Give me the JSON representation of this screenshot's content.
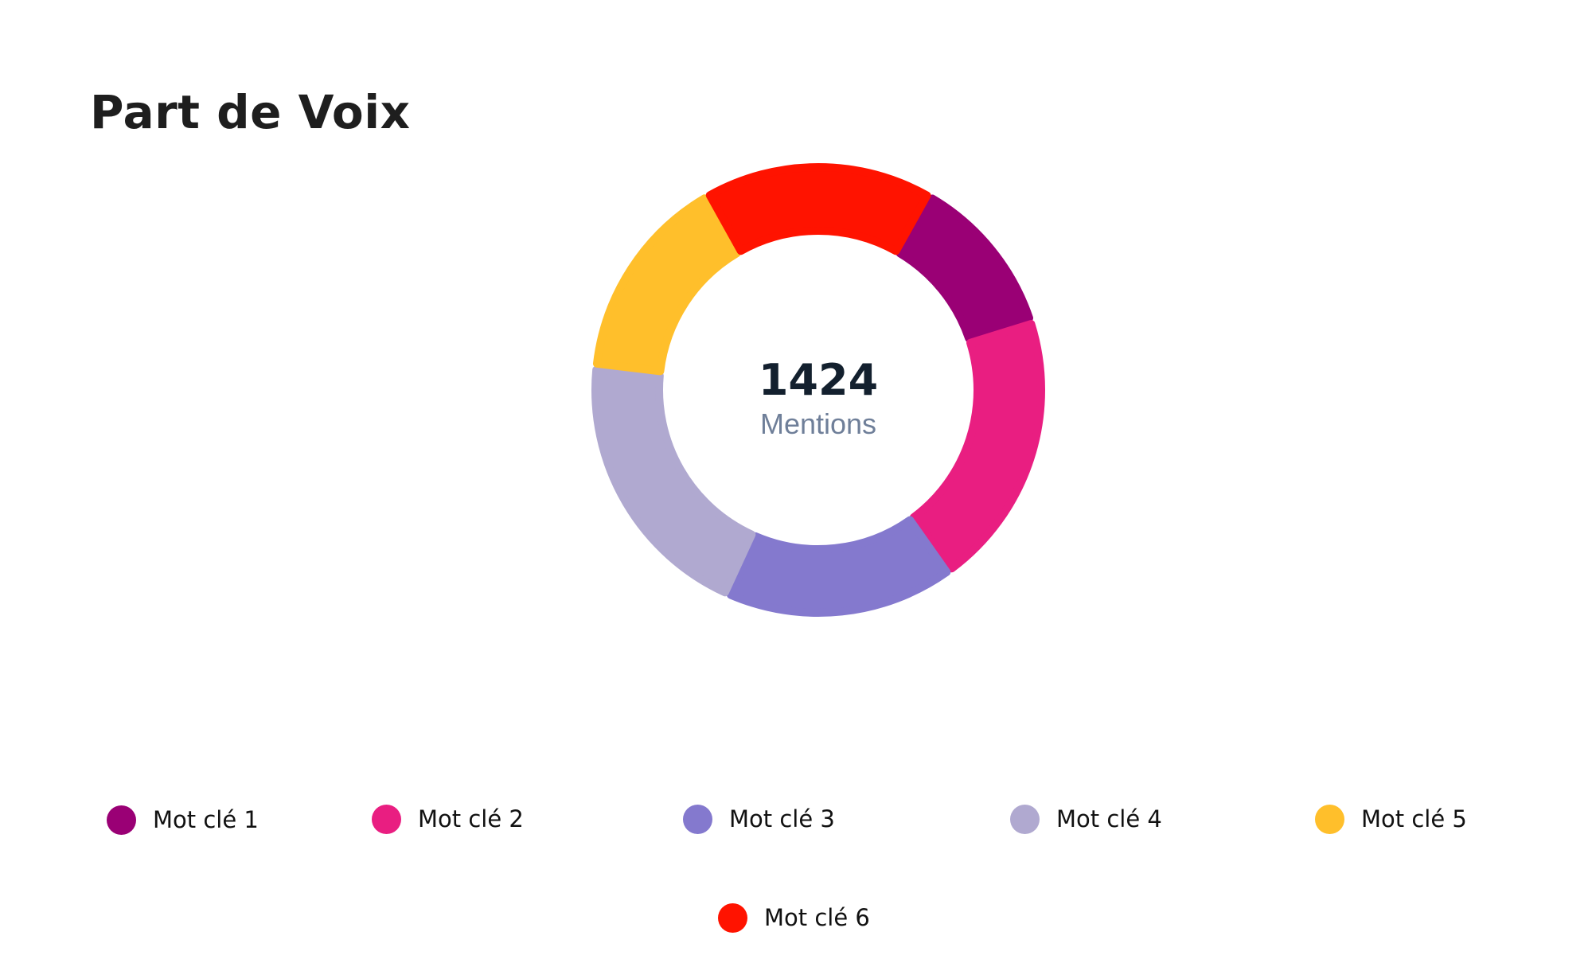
{
  "header": {
    "title": "Part de Voix"
  },
  "center": {
    "value": "1424",
    "label": "Mentions"
  },
  "chart_data": {
    "type": "pie",
    "variant": "donut",
    "total": 1424,
    "start_angle_deg": 60,
    "direction": "counterclockwise",
    "series": [
      {
        "name": "Mot clé 1",
        "value": 166,
        "color": "#9a0075"
      },
      {
        "name": "Mot clé 2",
        "value": 285,
        "color": "#e91e81"
      },
      {
        "name": "Mot clé 3",
        "value": 237,
        "color": "#8479ce"
      },
      {
        "name": "Mot clé 4",
        "value": 285,
        "color": "#b0a9d0"
      },
      {
        "name": "Mot clé 5",
        "value": 214,
        "color": "#ffbf2b"
      },
      {
        "name": "Mot clé 6",
        "value": 237,
        "color": "#ff1300"
      }
    ],
    "legend_position": "bottom"
  },
  "legend": {
    "items": [
      {
        "label": "Mot clé 1",
        "color": "#9a0075"
      },
      {
        "label": "Mot clé 2",
        "color": "#e91e81"
      },
      {
        "label": "Mot clé 3",
        "color": "#8479ce"
      },
      {
        "label": "Mot clé 4",
        "color": "#b0a9d0"
      },
      {
        "label": "Mot clé 5",
        "color": "#ffbf2b"
      },
      {
        "label": "Mot clé 6",
        "color": "#ff1300"
      }
    ]
  }
}
